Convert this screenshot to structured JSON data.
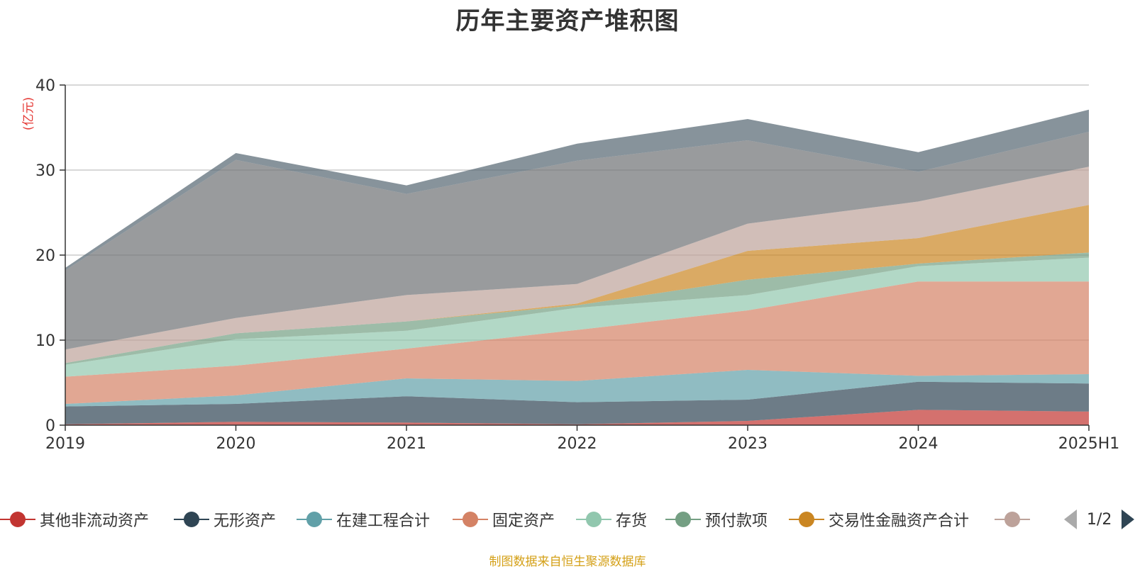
{
  "chart_data": {
    "type": "area",
    "title": "历年主要资产堆积图",
    "unit_label": "(亿元)",
    "categories": [
      "2019",
      "2020",
      "2021",
      "2022",
      "2023",
      "2024",
      "2025H1"
    ],
    "yticks": [
      "0",
      "10",
      "20",
      "30",
      "40"
    ],
    "ylim": [
      0,
      40
    ],
    "grid": true,
    "stacked": true,
    "series": [
      {
        "name": "其他非流动资产",
        "color": "#c23531",
        "values": [
          0.1,
          0.4,
          0.3,
          0.1,
          0.5,
          1.8,
          1.6
        ]
      },
      {
        "name": "无形资产",
        "color": "#2f4554",
        "values": [
          2.1,
          2.1,
          3.1,
          2.6,
          2.5,
          3.3,
          3.3
        ]
      },
      {
        "name": "在建工程合计",
        "color": "#61a0a8",
        "values": [
          0.3,
          1.0,
          2.1,
          2.5,
          3.5,
          0.7,
          1.1
        ]
      },
      {
        "name": "固定资产",
        "color": "#d48265",
        "values": [
          3.2,
          3.5,
          3.5,
          6.0,
          7.0,
          11.1,
          10.9
        ]
      },
      {
        "name": "存货",
        "color": "#91c7ae",
        "values": [
          1.4,
          3.1,
          2.1,
          2.6,
          1.8,
          1.8,
          2.8
        ]
      },
      {
        "name": "预付款项",
        "color": "#749f83",
        "values": [
          0.2,
          0.7,
          1.1,
          0.3,
          1.8,
          0.3,
          0.6
        ]
      },
      {
        "name": "交易性金融资产合计",
        "color": "#ca8622",
        "values": [
          0.0,
          0.0,
          0.0,
          0.2,
          3.4,
          3.0,
          5.6
        ]
      },
      {
        "name": "",
        "color": "#bda29a",
        "values": [
          1.6,
          1.8,
          3.1,
          2.3,
          3.2,
          4.3,
          4.5
        ]
      },
      {
        "name": "",
        "color": "#6e7074",
        "values": [
          9.3,
          18.6,
          11.9,
          14.5,
          9.8,
          3.5,
          4.1
        ]
      },
      {
        "name": "",
        "color": "#546570",
        "values": [
          0.3,
          0.8,
          1.0,
          2.0,
          2.5,
          2.3,
          2.6
        ]
      }
    ]
  },
  "legend": {
    "page_indicator": "1/2",
    "visible_items": [
      {
        "label": "其他非流动资产",
        "color": "#c23531"
      },
      {
        "label": "无形资产",
        "color": "#2f4554"
      },
      {
        "label": "在建工程合计",
        "color": "#61a0a8"
      },
      {
        "label": "固定资产",
        "color": "#d48265"
      },
      {
        "label": "存货",
        "color": "#91c7ae"
      },
      {
        "label": "预付款项",
        "color": "#749f83"
      },
      {
        "label": "交易性金融资产合计",
        "color": "#ca8622"
      },
      {
        "label": "",
        "color": "#bda29a"
      }
    ]
  },
  "source_note": "制图数据来自恒生聚源数据库"
}
